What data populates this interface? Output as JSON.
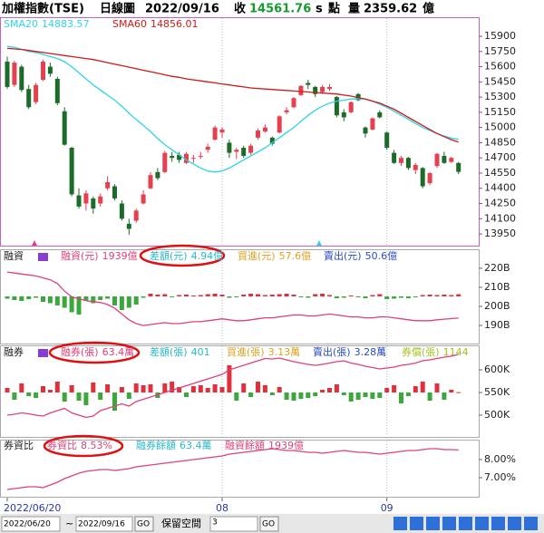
{
  "header": {
    "name": "加權指數(TSE)",
    "period": "日線圖",
    "date": "2022/09/16",
    "close_label": "收",
    "close": "14561.76",
    "close_flag": "s",
    "close_unit": "點",
    "volume_label": "量",
    "volume": "2359.62",
    "volume_unit": "億"
  },
  "toolbar": {
    "start": "2022/06/20",
    "sep": "~",
    "end": "2022/09/16",
    "go": "GO",
    "space_label": "保留空間",
    "space": "3",
    "go2": "GO"
  },
  "chart_data": [
    {
      "type": "candlestick",
      "categories": [
        "2022/06/20",
        null,
        null,
        null,
        null,
        null,
        null,
        null,
        null,
        null,
        null,
        null,
        null,
        null,
        null,
        null,
        null,
        null,
        null,
        null,
        null,
        null,
        null,
        null,
        null,
        null,
        null,
        null,
        null,
        null,
        "08",
        null,
        null,
        null,
        null,
        null,
        null,
        null,
        null,
        null,
        null,
        null,
        null,
        null,
        null,
        null,
        null,
        null,
        null,
        null,
        null,
        null,
        null,
        "09",
        null,
        null,
        null,
        null,
        null,
        null,
        null,
        null,
        null,
        null
      ],
      "open": [
        15650,
        15420,
        15600,
        15380,
        15250,
        15470,
        15600,
        15480,
        15160,
        14800,
        14330,
        14250,
        14300,
        14250,
        14400,
        14420,
        14250,
        14050,
        14080,
        14250,
        14400,
        14560,
        14560,
        14720,
        14730,
        14650,
        14700,
        14720,
        14780,
        14880,
        14950,
        14850,
        14760,
        14800,
        14750,
        14900,
        14960,
        14900,
        14950,
        15150,
        15200,
        15320,
        15440,
        15400,
        15350,
        15380,
        15300,
        15150,
        15150,
        15330,
        15000,
        14980,
        15150,
        14950,
        14750,
        14650,
        14700,
        14580,
        14600,
        14450,
        14620,
        14720,
        14660,
        14650
      ],
      "high": [
        15700,
        15660,
        15620,
        15420,
        15440,
        15670,
        15640,
        15500,
        15200,
        14810,
        14400,
        14380,
        14320,
        14350,
        14520,
        14440,
        14280,
        14100,
        14200,
        14380,
        14560,
        14600,
        14770,
        14760,
        14760,
        14760,
        14730,
        14760,
        14840,
        15020,
        15000,
        14880,
        14800,
        14820,
        14840,
        14990,
        15030,
        14910,
        15120,
        15200,
        15300,
        15420,
        15470,
        15410,
        15420,
        15430,
        15310,
        15180,
        15260,
        15340,
        15010,
        15100,
        15170,
        14960,
        14780,
        14720,
        14710,
        14650,
        14610,
        14560,
        14750,
        14760,
        14710,
        14660
      ],
      "low": [
        15380,
        15400,
        15350,
        15180,
        15230,
        15460,
        15500,
        15220,
        14820,
        14320,
        14200,
        14180,
        14150,
        14220,
        14380,
        14280,
        14080,
        13940,
        14060,
        14240,
        14390,
        14480,
        14550,
        14660,
        14650,
        14640,
        14650,
        14690,
        14750,
        14870,
        14900,
        14700,
        14690,
        14700,
        14730,
        14880,
        14950,
        14820,
        14940,
        15130,
        15190,
        15310,
        15380,
        15300,
        15330,
        15360,
        15100,
        15060,
        15140,
        15260,
        14900,
        14970,
        15090,
        14780,
        14640,
        14620,
        14580,
        14540,
        14400,
        14430,
        14600,
        14640,
        14650,
        14540
      ],
      "close": [
        15400,
        15640,
        15370,
        15200,
        15420,
        15650,
        15530,
        15240,
        14830,
        14340,
        14220,
        14350,
        14200,
        14320,
        14460,
        14300,
        14100,
        14000,
        14180,
        14340,
        14530,
        14500,
        14750,
        14700,
        14680,
        14740,
        14700,
        14720,
        14810,
        15000,
        14980,
        14750,
        14780,
        14720,
        14820,
        14970,
        15000,
        14840,
        15110,
        15170,
        15290,
        15410,
        15420,
        15330,
        15400,
        15400,
        15120,
        15100,
        15250,
        15270,
        14940,
        15090,
        15100,
        14800,
        14650,
        14700,
        14600,
        14630,
        14420,
        14550,
        14740,
        14650,
        14700,
        14561.76
      ],
      "up_color": "#e5404e",
      "down_color": "#1c6b2a",
      "series": [
        {
          "name": "SMA20",
          "legend_value": "14883.57",
          "color": "#2fd3e6",
          "values": [
            15800,
            15790,
            15770,
            15750,
            15740,
            15720,
            15700,
            15680,
            15650,
            15600,
            15540,
            15480,
            15420,
            15370,
            15320,
            15270,
            15210,
            15140,
            15080,
            15020,
            14960,
            14890,
            14830,
            14780,
            14730,
            14680,
            14640,
            14600,
            14570,
            14560,
            14570,
            14600,
            14640,
            14680,
            14720,
            14760,
            14800,
            14850,
            14900,
            14950,
            15000,
            15060,
            15120,
            15170,
            15210,
            15240,
            15260,
            15270,
            15280,
            15285,
            15280,
            15260,
            15230,
            15200,
            15160,
            15120,
            15080,
            15040,
            15000,
            14970,
            14940,
            14915,
            14895,
            14883.57
          ]
        },
        {
          "name": "SMA60",
          "legend_value": "14856.01",
          "color": "#cc1a1a",
          "values": [
            15780,
            15775,
            15770,
            15760,
            15750,
            15740,
            15730,
            15720,
            15710,
            15700,
            15690,
            15680,
            15670,
            15655,
            15640,
            15625,
            15610,
            15595,
            15580,
            15565,
            15550,
            15535,
            15520,
            15505,
            15495,
            15480,
            15470,
            15460,
            15450,
            15440,
            15430,
            15420,
            15410,
            15400,
            15390,
            15385,
            15380,
            15375,
            15370,
            15365,
            15360,
            15355,
            15350,
            15345,
            15340,
            15335,
            15330,
            15320,
            15310,
            15295,
            15280,
            15260,
            15240,
            15210,
            15180,
            15140,
            15100,
            15060,
            15020,
            14980,
            14940,
            14910,
            14880,
            14856.01
          ]
        }
      ],
      "ylim": [
        13843,
        16079
      ],
      "yticks": [
        15900,
        15750,
        15600,
        15450,
        15300,
        15150,
        15000,
        14850,
        14700,
        14550,
        14400,
        14250,
        14100,
        13950
      ]
    },
    {
      "type": "combo",
      "title": "融資",
      "legend": [
        {
          "name": "融資(元)",
          "value": "1939億",
          "color": "#e0407a"
        },
        {
          "name": "差額(元)",
          "value": "4.94億",
          "color": "#28b8c8"
        },
        {
          "name": "買進(元)",
          "value": "57.6億",
          "color": "#e0a020"
        },
        {
          "name": "賣出(元)",
          "value": "50.6億",
          "color": "#2a4cc8"
        }
      ],
      "series": [
        {
          "style": "bar",
          "up_color": "#e0303a",
          "down_color": "#3aa83a",
          "values": [
            -5,
            -8,
            -10,
            -6,
            -3,
            -12,
            -15,
            -20,
            -25,
            -35,
            -40,
            -10,
            -15,
            -8,
            -5,
            -20,
            -30,
            -25,
            -18,
            -3,
            6,
            4,
            5,
            -2,
            3,
            4,
            2,
            3,
            5,
            6,
            4,
            -3,
            -2,
            4,
            6,
            5,
            3,
            4,
            5,
            6,
            4,
            -2,
            -3,
            5,
            6,
            3,
            -4,
            -3,
            2,
            -2,
            -4,
            3,
            5,
            -6,
            -5,
            -3,
            -4,
            -2,
            3,
            4,
            3,
            4,
            3,
            4.94
          ]
        },
        {
          "style": "line",
          "color": "#e0407a",
          "values": [
            218,
            217.5,
            217,
            216.5,
            216,
            215,
            214,
            212,
            208,
            205,
            204,
            203,
            202.5,
            202,
            201,
            199,
            196,
            193,
            191,
            190,
            190.5,
            191,
            191.5,
            191,
            191,
            191.5,
            192,
            192,
            192.5,
            193,
            193.5,
            193,
            192.5,
            192.5,
            193,
            193.5,
            194,
            194,
            194.5,
            195,
            195.5,
            195.5,
            195,
            195,
            195.5,
            196,
            195.5,
            195,
            194.5,
            194.5,
            194,
            194,
            194.5,
            194.5,
            194,
            193.5,
            193,
            192.5,
            192.5,
            192.5,
            193,
            193.3,
            193.6,
            193.9
          ]
        }
      ],
      "ylim": [
        181,
        229
      ],
      "yticks": [
        {
          "value": 220,
          "label": "220B"
        },
        {
          "value": 210,
          "label": "210B"
        },
        {
          "value": 200,
          "label": "200B"
        },
        {
          "value": 190,
          "label": "190B"
        }
      ]
    },
    {
      "type": "combo",
      "title": "融券",
      "legend": [
        {
          "name": "融券(張)",
          "value": "63.4萬",
          "color": "#e0407a"
        },
        {
          "name": "差額(張)",
          "value": "401",
          "color": "#28b8c8"
        },
        {
          "name": "買進(張)",
          "value": "3.13萬",
          "color": "#e0a020"
        },
        {
          "name": "賣出(張)",
          "value": "3.28萬",
          "color": "#2a4cc8"
        },
        {
          "name": "券償(張)",
          "value": "1144",
          "color": "#a0c020"
        }
      ],
      "series": [
        {
          "style": "bar",
          "up_color": "#e0303a",
          "down_color": "#3aa83a",
          "values": [
            5000,
            -8000,
            10000,
            -4000,
            -6000,
            7000,
            3000,
            12000,
            -10000,
            8000,
            -9000,
            -14000,
            11000,
            -8000,
            9000,
            -20000,
            6000,
            -7000,
            10000,
            8000,
            9000,
            -6000,
            10000,
            12000,
            6000,
            -5000,
            7000,
            8000,
            5000,
            9000,
            6000,
            30000,
            -9000,
            10000,
            -5000,
            12000,
            8000,
            -3000,
            6000,
            -8000,
            -9000,
            -7000,
            -6000,
            -4000,
            3000,
            5000,
            9000,
            -3000,
            -10000,
            -8000,
            -5000,
            -7000,
            -6000,
            5000,
            8000,
            -12000,
            -4000,
            7000,
            12000,
            -9000,
            10000,
            -8000,
            3000,
            401
          ]
        },
        {
          "style": "line",
          "color": "#e0407a",
          "values": [
            500,
            502,
            505,
            503,
            500,
            498,
            505,
            510,
            515,
            505,
            500,
            495,
            498,
            510,
            515,
            520,
            525,
            520,
            530,
            535,
            540,
            545,
            550,
            555,
            560,
            565,
            570,
            575,
            580,
            585,
            590,
            600,
            605,
            610,
            615,
            620,
            625,
            624,
            626,
            622,
            618,
            615,
            612,
            610,
            612,
            615,
            618,
            620,
            615,
            612,
            608,
            605,
            602,
            604,
            606,
            610,
            612,
            615,
            620,
            622,
            625,
            628,
            630,
            634
          ]
        }
      ],
      "ylim": [
        454,
        652
      ],
      "yticks": [
        {
          "value": 600,
          "label": "600K"
        },
        {
          "value": 550,
          "label": "550K"
        },
        {
          "value": 500,
          "label": "500K"
        }
      ]
    },
    {
      "type": "line",
      "title": "券資比",
      "legend": [
        {
          "name": "券資比",
          "value": "8.53%",
          "color": "#e0407a"
        },
        {
          "name": "融券餘額",
          "value": "63.4萬",
          "color": "#28b8c8"
        },
        {
          "name": "融資餘額",
          "value": "1939億",
          "color": "#e0407a"
        }
      ],
      "series": [
        {
          "color": "#e0407a",
          "values": [
            6.35,
            6.4,
            6.45,
            6.5,
            6.5,
            6.45,
            6.6,
            6.75,
            6.95,
            7.1,
            7.25,
            7.35,
            7.4,
            7.45,
            7.45,
            7.4,
            7.45,
            7.5,
            7.6,
            7.65,
            7.7,
            7.75,
            7.8,
            7.85,
            7.9,
            7.95,
            8.0,
            8.05,
            8.1,
            8.15,
            8.2,
            8.3,
            8.35,
            8.4,
            8.45,
            8.5,
            8.55,
            8.6,
            8.55,
            8.5,
            8.5,
            8.45,
            8.4,
            8.4,
            8.35,
            8.4,
            8.45,
            8.5,
            8.45,
            8.4,
            8.4,
            8.35,
            8.3,
            8.35,
            8.4,
            8.45,
            8.5,
            8.5,
            8.55,
            8.6,
            8.6,
            8.55,
            8.55,
            8.53
          ]
        }
      ],
      "ylim": [
        6,
        9
      ],
      "yticks": [
        {
          "value": 8,
          "label": "8.00%"
        },
        {
          "value": 7,
          "label": "7.00%"
        }
      ]
    }
  ]
}
